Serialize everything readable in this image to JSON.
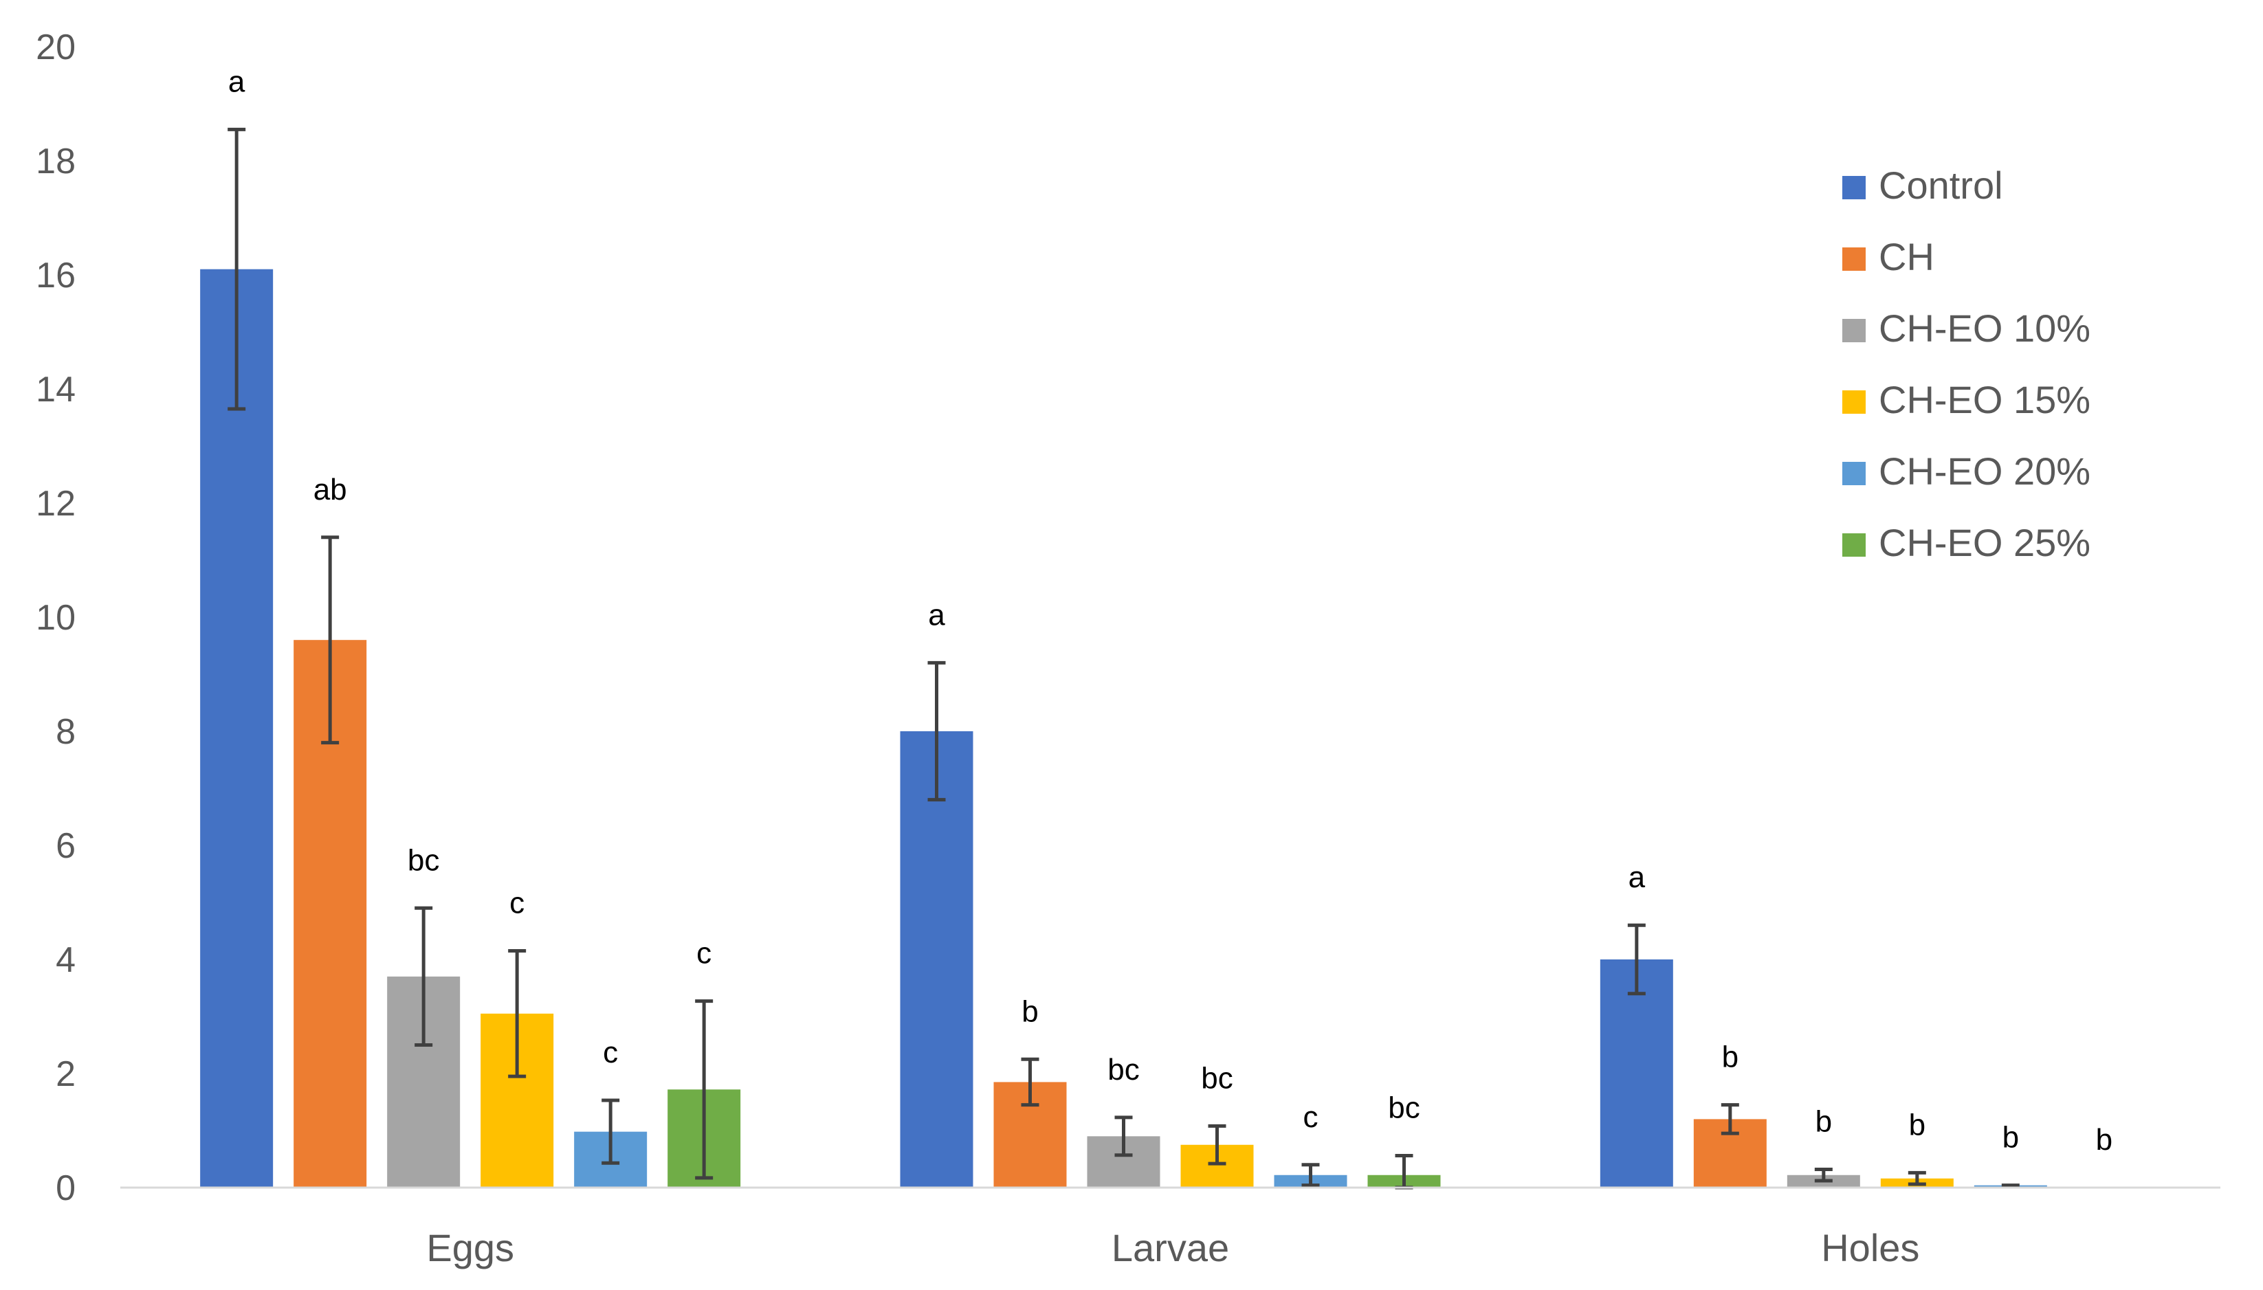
{
  "chart_data": {
    "type": "bar",
    "title": "",
    "xlabel": "",
    "ylabel": "",
    "ylim": [
      0,
      20
    ],
    "yticks": [
      0,
      2,
      4,
      6,
      8,
      10,
      12,
      14,
      16,
      18,
      20
    ],
    "grid": false,
    "legend_position": "top-right",
    "categories": [
      "Eggs",
      "Larvae",
      "Holes"
    ],
    "series": [
      {
        "name": "Control",
        "color": "#4472C4",
        "values": [
          16.1,
          8.0,
          4.0
        ],
        "errors": [
          2.45,
          1.2,
          0.6
        ],
        "labels": [
          "a",
          "a",
          "a"
        ]
      },
      {
        "name": "CH",
        "color": "#ED7D31",
        "values": [
          9.6,
          1.85,
          1.2
        ],
        "errors": [
          1.8,
          0.4,
          0.25
        ],
        "labels": [
          "ab",
          "b",
          "b"
        ]
      },
      {
        "name": "CH-EO 10%",
        "color": "#A5A5A5",
        "values": [
          3.7,
          0.9,
          0.22
        ],
        "errors": [
          1.2,
          0.33,
          0.1
        ],
        "labels": [
          "bc",
          "bc",
          "b"
        ]
      },
      {
        "name": "CH-EO 15%",
        "color": "#FFC000",
        "values": [
          3.05,
          0.75,
          0.16
        ],
        "errors": [
          1.1,
          0.33,
          0.1
        ],
        "labels": [
          "c",
          "bc",
          "b"
        ]
      },
      {
        "name": "CH-EO 20%",
        "color": "#5B9BD5",
        "values": [
          0.98,
          0.22,
          0.04
        ],
        "errors": [
          0.55,
          0.18,
          0.0
        ],
        "labels": [
          "c",
          "c",
          "b"
        ]
      },
      {
        "name": "CH-EO 25%",
        "color": "#70AD47",
        "values": [
          1.72,
          0.22,
          0.0
        ],
        "errors": [
          1.55,
          0.34,
          0.0
        ],
        "labels": [
          "c",
          "bc",
          "b"
        ]
      }
    ]
  }
}
